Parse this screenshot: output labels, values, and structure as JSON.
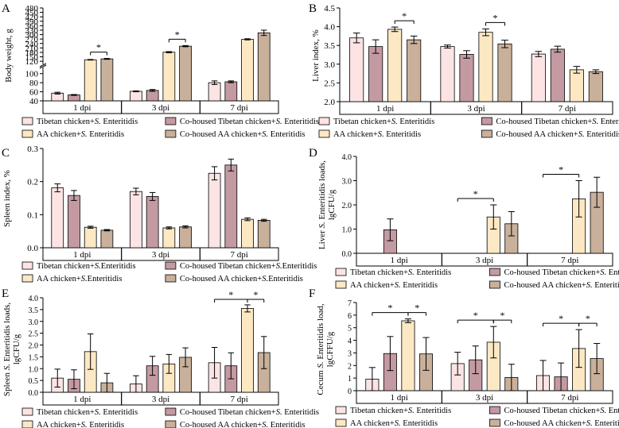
{
  "colors": {
    "tibetan": "#fce4e4",
    "cohoused_tibetan": "#c49aa2",
    "aa": "#fce8c3",
    "cohoused_aa": "#c9b09a",
    "axis": "#000000"
  },
  "legend_entries": [
    {
      "name": "Tibetan chicken+S. Enteritidis"
    },
    {
      "name": "Co-housed Tibetan chicken+S. Enteritidis"
    },
    {
      "name": "AA chicken+S. Enteritidis"
    },
    {
      "name": "Co-housed AA chicken+S. Enteritidis"
    }
  ],
  "chart_data": [
    {
      "panel": "A",
      "type": "bar",
      "ylabel": "Body weight, g",
      "groups": [
        "1 dpi",
        "3 dpi",
        "7 dpi"
      ],
      "broken_axis": true,
      "yticks_lower": [
        "40",
        "60",
        "80",
        "100"
      ],
      "yticks_upper": [
        "120",
        "150",
        "180",
        "210",
        "240",
        "270",
        "300",
        "330",
        "360",
        "390",
        "420",
        "450",
        "480"
      ],
      "ylim_lower": [
        40,
        110
      ],
      "ylim_upper": [
        110,
        480
      ],
      "series": [
        {
          "name": "Tibetan chicken+S. Enteritidis",
          "values": [
            57,
            61,
            80
          ],
          "errors": [
            2,
            1,
            4
          ]
        },
        {
          "name": "Co-housed Tibetan chicken+S. Enteritidis",
          "values": [
            53,
            63,
            82
          ],
          "errors": [
            1,
            2,
            2
          ]
        },
        {
          "name": "AA chicken+S. Enteritidis",
          "values": [
            130,
            181,
            268
          ],
          "errors": [
            2,
            4,
            4
          ]
        },
        {
          "name": "Co-housed AA chicken+S. Enteritidis",
          "values": [
            136,
            222,
            312
          ],
          "errors": [
            3,
            4,
            18
          ]
        }
      ],
      "significance": [
        {
          "group": 0,
          "from": 2,
          "to": 3,
          "label": "*"
        },
        {
          "group": 1,
          "from": 2,
          "to": 3,
          "label": "*"
        }
      ]
    },
    {
      "panel": "B",
      "type": "bar",
      "ylabel": "Liver index, %",
      "groups": [
        "1 dpi",
        "3 dpi",
        "7 dpi"
      ],
      "ylim": [
        2.0,
        4.5
      ],
      "yticks": [
        "2.0",
        "2.5",
        "3.0",
        "3.5",
        "4.0",
        "4.5"
      ],
      "series": [
        {
          "name": "Tibetan chicken+S. Enteritidis",
          "values": [
            3.7,
            3.47,
            3.27
          ],
          "errors": [
            0.13,
            0.04,
            0.07
          ]
        },
        {
          "name": "Co-housed Tibetan chicken+S. Enteritidis",
          "values": [
            3.47,
            3.26,
            3.4
          ],
          "errors": [
            0.18,
            0.1,
            0.08
          ]
        },
        {
          "name": "AA chicken+S. Enteritidis",
          "values": [
            3.93,
            3.85,
            2.85
          ],
          "errors": [
            0.06,
            0.09,
            0.09
          ]
        },
        {
          "name": "Co-housed AA chicken+S. Enteritidis",
          "values": [
            3.65,
            3.54,
            2.8
          ],
          "errors": [
            0.1,
            0.1,
            0.05
          ]
        }
      ],
      "significance": [
        {
          "group": 0,
          "from": 2,
          "to": 3,
          "label": "*"
        },
        {
          "group": 1,
          "from": 2,
          "to": 3,
          "label": "*"
        }
      ]
    },
    {
      "panel": "C",
      "type": "bar",
      "ylabel": "Spleen index, %",
      "groups": [
        "1 dpi",
        "3 dpi",
        "7 dpi"
      ],
      "ylim": [
        0.0,
        0.3
      ],
      "yticks": [
        "0.0",
        "0.1",
        "0.2",
        "0.3"
      ],
      "series": [
        {
          "name": "Tibetan chicken+S.Enteritidis",
          "values": [
            0.181,
            0.17,
            0.225
          ],
          "errors": [
            0.012,
            0.01,
            0.02
          ]
        },
        {
          "name": "Co-housed Tibetan chicken+S.Enteritidis",
          "values": [
            0.158,
            0.155,
            0.25
          ],
          "errors": [
            0.015,
            0.012,
            0.018
          ]
        },
        {
          "name": "AA chicken+S.Enteritidis",
          "values": [
            0.062,
            0.06,
            0.086
          ],
          "errors": [
            0.003,
            0.003,
            0.004
          ]
        },
        {
          "name": "Co-housed AA chicken+S.Enteritidis",
          "values": [
            0.053,
            0.063,
            0.083
          ],
          "errors": [
            0.002,
            0.003,
            0.003
          ]
        }
      ],
      "significance": []
    },
    {
      "panel": "D",
      "type": "bar",
      "ylabel": "Liver S. Enteritidis loads, lgCFU/g",
      "groups": [
        "1 dpi",
        "3 dpi",
        "7 dpi"
      ],
      "ylim": [
        0.0,
        4.0
      ],
      "yticks": [
        "0.0",
        "1.0",
        "2.0",
        "3.0",
        "4.0"
      ],
      "series": [
        {
          "name": "Tibetan chicken+S. Enteritidis",
          "values": [
            0.0,
            0.0,
            0.0
          ],
          "errors": [
            0,
            0,
            0
          ]
        },
        {
          "name": "Co-housed Tibetan chicken+S. Enteritidis",
          "values": [
            0.97,
            0.0,
            0.0
          ],
          "errors": [
            0.45,
            0,
            0
          ]
        },
        {
          "name": "AA chicken+S. Enteritidis",
          "values": [
            0.0,
            1.5,
            2.25
          ],
          "errors": [
            0,
            0.5,
            0.75
          ]
        },
        {
          "name": "Co-housed AA chicken+S. Enteritidis",
          "values": [
            0.0,
            1.22,
            2.52
          ],
          "errors": [
            0,
            0.5,
            0.62
          ]
        }
      ],
      "significance": [
        {
          "group": 1,
          "from": 0,
          "to": 2,
          "label": "*"
        },
        {
          "group": 2,
          "from": 0,
          "to": 2,
          "label": "*"
        }
      ]
    },
    {
      "panel": "E",
      "type": "bar",
      "ylabel": "Spleen S. Enteritidis loads, lgCFU/g",
      "groups": [
        "1 dpi",
        "3 dpi",
        "7 dpi"
      ],
      "ylim": [
        0.0,
        4.0
      ],
      "yticks": [
        "0.0",
        "0.5",
        "1.0",
        "1.5",
        "2.0",
        "2.5",
        "3.0",
        "3.5",
        "4.0"
      ],
      "series": [
        {
          "name": "Tibetan chicken+S. Enteritidis",
          "values": [
            0.6,
            0.35,
            1.25
          ],
          "errors": [
            0.38,
            0.35,
            0.65
          ]
        },
        {
          "name": "Co-housed Tibetan chicken+S. Enteritidis",
          "values": [
            0.55,
            1.12,
            1.12
          ],
          "errors": [
            0.4,
            0.4,
            0.55
          ]
        },
        {
          "name": "AA chicken+S. Enteritidis",
          "values": [
            1.72,
            1.2,
            3.55
          ],
          "errors": [
            0.75,
            0.4,
            0.15
          ]
        },
        {
          "name": "Co-housed AA chicken+S. Enteritidis",
          "values": [
            0.4,
            1.48,
            1.68
          ],
          "errors": [
            0.4,
            0.4,
            0.68
          ]
        }
      ],
      "significance": [
        {
          "group": 2,
          "from": 0,
          "to": 2,
          "label": "*"
        },
        {
          "group": 2,
          "from": 2,
          "to": 3,
          "label": "*"
        }
      ]
    },
    {
      "panel": "F",
      "type": "bar",
      "ylabel": "Cecum S. Enteritidis load, lgCFFU/g",
      "groups": [
        "1 dpi",
        "3 dpi",
        "7 dpi"
      ],
      "ylim": [
        0,
        7
      ],
      "yticks": [
        "0",
        "1",
        "2",
        "3",
        "4",
        "5",
        "6",
        "7"
      ],
      "series": [
        {
          "name": "Tibetan chicken+S. Enteritidis",
          "values": [
            0.92,
            2.15,
            1.2
          ],
          "errors": [
            0.92,
            0.9,
            1.2
          ]
        },
        {
          "name": "Co-housed Tibetan chicken+S. Enteritidis",
          "values": [
            2.95,
            2.45,
            1.1
          ],
          "errors": [
            1.35,
            1.1,
            1.1
          ]
        },
        {
          "name": "AA chicken+S. Enteritidis",
          "values": [
            5.55,
            3.85,
            3.35
          ],
          "errors": [
            0.15,
            1.25,
            1.5
          ]
        },
        {
          "name": "Co-housed AA chicken+S. Enteritidis",
          "values": [
            2.92,
            1.05,
            2.55
          ],
          "errors": [
            1.3,
            1.05,
            1.2
          ]
        }
      ],
      "significance": [
        {
          "group": 0,
          "from": 0,
          "to": 2,
          "label": "*"
        },
        {
          "group": 0,
          "from": 2,
          "to": 3,
          "label": "*"
        },
        {
          "group": 1,
          "from": 0,
          "to": 2,
          "label": "*"
        },
        {
          "group": 1,
          "from": 2,
          "to": 3,
          "label": "*"
        },
        {
          "group": 2,
          "from": 0,
          "to": 2,
          "label": "*"
        },
        {
          "group": 2,
          "from": 2,
          "to": 3,
          "label": "*"
        }
      ]
    }
  ]
}
